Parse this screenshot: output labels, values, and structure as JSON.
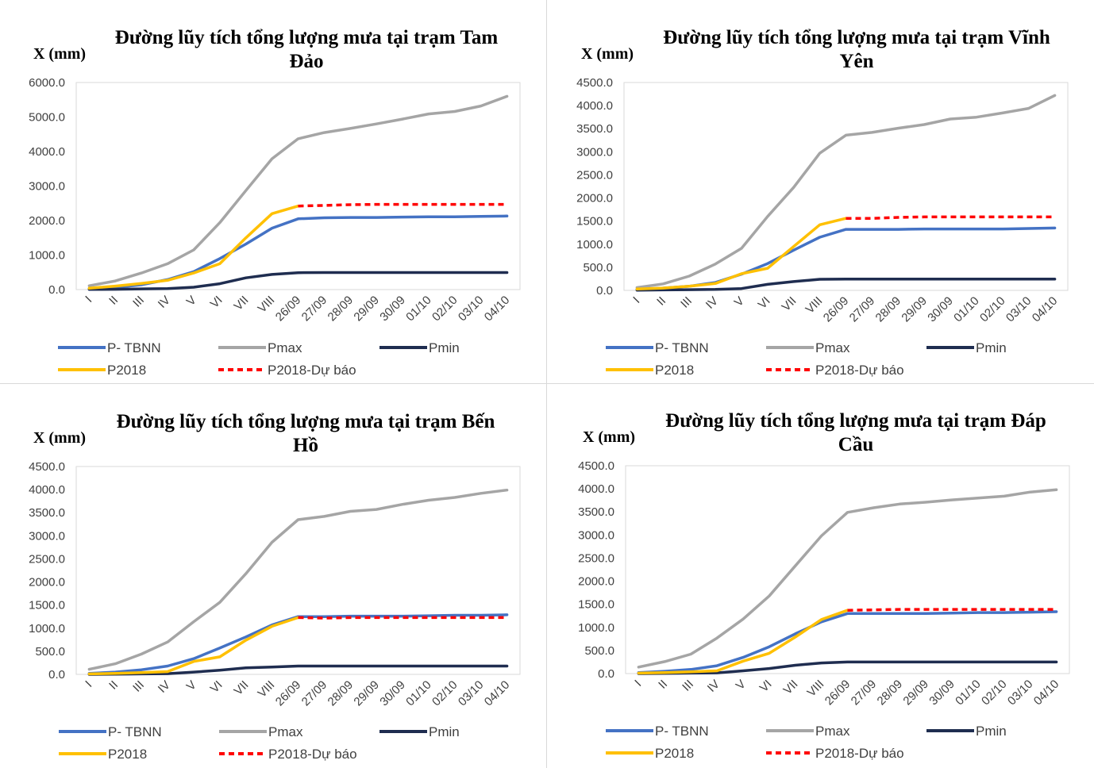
{
  "chart_data": [
    {
      "type": "line",
      "title_lines": [
        "Đường lũy tích tổng lượng mưa tại trạm Tam",
        "Đảo"
      ],
      "ylabel": "X (mm)",
      "xlabel": "",
      "ylim": [
        0,
        6000
      ],
      "ytick_step": 1000,
      "categories": [
        "I",
        "II",
        "III",
        "IV",
        "V",
        "VI",
        "VII",
        "VIII",
        "26/09",
        "27/09",
        "28/09",
        "29/09",
        "30/09",
        "01/10",
        "02/10",
        "03/10",
        "04/10"
      ],
      "series": [
        {
          "name": "P- TBNN",
          "color": "#4472c4",
          "dashed": false,
          "values": [
            20,
            60,
            140,
            290,
            520,
            900,
            1320,
            1780,
            2050,
            2080,
            2090,
            2090,
            2100,
            2110,
            2110,
            2120,
            2130
          ]
        },
        {
          "name": "Pmax",
          "color": "#a5a5a5",
          "dashed": false,
          "values": [
            110,
            250,
            480,
            750,
            1150,
            1940,
            2870,
            3790,
            4370,
            4550,
            4670,
            4800,
            4940,
            5090,
            5160,
            5320,
            5600
          ]
        },
        {
          "name": "Pmin",
          "color": "#1f2d50",
          "dashed": false,
          "values": [
            5,
            10,
            20,
            30,
            70,
            170,
            340,
            440,
            490,
            495,
            495,
            495,
            495,
            495,
            495,
            495,
            495
          ]
        },
        {
          "name": "P2018",
          "color": "#ffc000",
          "dashed": false,
          "values": [
            40,
            100,
            180,
            270,
            480,
            750,
            1500,
            2200,
            2420,
            null,
            null,
            null,
            null,
            null,
            null,
            null,
            null
          ]
        },
        {
          "name": "P2018-Dự báo",
          "color": "#ff0000",
          "dashed": true,
          "values": [
            null,
            null,
            null,
            null,
            null,
            null,
            null,
            null,
            2420,
            2440,
            2460,
            2470,
            2470,
            2470,
            2470,
            2470,
            2470
          ]
        }
      ]
    },
    {
      "type": "line",
      "title_lines": [
        "Đường lũy tích tổng lượng mưa tại trạm Vĩnh",
        "Yên"
      ],
      "ylabel": "X (mm)",
      "xlabel": "",
      "ylim": [
        0,
        4500
      ],
      "ytick_step": 500,
      "categories": [
        "I",
        "II",
        "III",
        "IV",
        "V",
        "VI",
        "VII",
        "VIII",
        "26/09",
        "27/09",
        "28/09",
        "29/09",
        "30/09",
        "01/10",
        "02/10",
        "03/10",
        "04/10"
      ],
      "series": [
        {
          "name": "P- TBNN",
          "color": "#4472c4",
          "dashed": false,
          "values": [
            20,
            50,
            90,
            170,
            350,
            580,
            870,
            1150,
            1320,
            1320,
            1320,
            1330,
            1330,
            1330,
            1330,
            1340,
            1350
          ]
        },
        {
          "name": "Pmax",
          "color": "#a5a5a5",
          "dashed": false,
          "values": [
            60,
            140,
            310,
            570,
            910,
            1600,
            2230,
            2970,
            3360,
            3420,
            3510,
            3590,
            3710,
            3750,
            3840,
            3940,
            4220
          ]
        },
        {
          "name": "Pmin",
          "color": "#1f2d50",
          "dashed": false,
          "values": [
            5,
            10,
            15,
            20,
            40,
            130,
            190,
            240,
            245,
            245,
            245,
            245,
            245,
            245,
            245,
            245,
            245
          ]
        },
        {
          "name": "P2018",
          "color": "#ffc000",
          "dashed": false,
          "values": [
            30,
            50,
            90,
            150,
            360,
            480,
            950,
            1420,
            1560,
            null,
            null,
            null,
            null,
            null,
            null,
            null,
            null
          ]
        },
        {
          "name": "P2018-Dự báo",
          "color": "#ff0000",
          "dashed": true,
          "values": [
            null,
            null,
            null,
            null,
            null,
            null,
            null,
            null,
            1560,
            1560,
            1580,
            1590,
            1590,
            1590,
            1590,
            1590,
            1590
          ]
        }
      ]
    },
    {
      "type": "line",
      "title_lines": [
        "Đường lũy tích tổng lượng mưa tại trạm Bến",
        "Hồ"
      ],
      "ylabel": "X (mm)",
      "xlabel": "",
      "ylim": [
        0,
        4500
      ],
      "ytick_step": 500,
      "categories": [
        "I",
        "II",
        "III",
        "IV",
        "V",
        "VI",
        "VII",
        "VIII",
        "26/09",
        "27/09",
        "28/09",
        "29/09",
        "30/09",
        "01/10",
        "02/10",
        "03/10",
        "04/10"
      ],
      "series": [
        {
          "name": "P- TBNN",
          "color": "#4472c4",
          "dashed": false,
          "values": [
            20,
            50,
            100,
            180,
            340,
            570,
            810,
            1070,
            1250,
            1250,
            1260,
            1260,
            1260,
            1270,
            1280,
            1280,
            1290
          ]
        },
        {
          "name": "Pmax",
          "color": "#a5a5a5",
          "dashed": false,
          "values": [
            110,
            230,
            440,
            700,
            1140,
            1560,
            2180,
            2860,
            3350,
            3420,
            3530,
            3570,
            3680,
            3770,
            3830,
            3920,
            3990
          ]
        },
        {
          "name": "Pmin",
          "color": "#1f2d50",
          "dashed": false,
          "values": [
            0,
            5,
            10,
            15,
            50,
            90,
            140,
            160,
            180,
            180,
            180,
            180,
            180,
            180,
            180,
            180,
            180
          ]
        },
        {
          "name": "P2018",
          "color": "#ffc000",
          "dashed": false,
          "values": [
            10,
            20,
            40,
            60,
            280,
            380,
            740,
            1040,
            1230,
            null,
            null,
            null,
            null,
            null,
            null,
            null,
            null
          ]
        },
        {
          "name": "P2018-Dự báo",
          "color": "#ff0000",
          "dashed": true,
          "values": [
            null,
            null,
            null,
            null,
            null,
            null,
            null,
            null,
            1230,
            1220,
            1230,
            1230,
            1230,
            1230,
            1230,
            1230,
            1230
          ]
        }
      ]
    },
    {
      "type": "line",
      "title_lines": [
        "Đường lũy tích tổng lượng mưa tại trạm Đáp",
        "Cầu"
      ],
      "ylabel": "X (mm)",
      "xlabel": "",
      "ylim": [
        0,
        4500
      ],
      "ytick_step": 500,
      "categories": [
        "I",
        "II",
        "III",
        "IV",
        "V",
        "VI",
        "VII",
        "VIII",
        "26/09",
        "27/09",
        "28/09",
        "29/09",
        "30/09",
        "01/10",
        "02/10",
        "03/10",
        "04/10"
      ],
      "series": [
        {
          "name": "P- TBNN",
          "color": "#4472c4",
          "dashed": false,
          "values": [
            20,
            50,
            90,
            170,
            350,
            580,
            860,
            1120,
            1300,
            1300,
            1300,
            1300,
            1310,
            1320,
            1320,
            1330,
            1340
          ]
        },
        {
          "name": "Pmax",
          "color": "#a5a5a5",
          "dashed": false,
          "values": [
            140,
            260,
            420,
            770,
            1180,
            1680,
            2330,
            2980,
            3490,
            3590,
            3670,
            3710,
            3760,
            3800,
            3840,
            3930,
            3980
          ]
        },
        {
          "name": "Pmin",
          "color": "#1f2d50",
          "dashed": false,
          "values": [
            0,
            5,
            10,
            15,
            60,
            110,
            180,
            230,
            250,
            250,
            250,
            250,
            250,
            250,
            250,
            250,
            250
          ]
        },
        {
          "name": "P2018",
          "color": "#ffc000",
          "dashed": false,
          "values": [
            10,
            20,
            40,
            60,
            270,
            440,
            790,
            1170,
            1370,
            null,
            null,
            null,
            null,
            null,
            null,
            null,
            null
          ]
        },
        {
          "name": "P2018-Dự báo",
          "color": "#ff0000",
          "dashed": true,
          "values": [
            null,
            null,
            null,
            null,
            null,
            null,
            null,
            null,
            1370,
            1380,
            1390,
            1390,
            1390,
            1390,
            1390,
            1390,
            1390
          ]
        }
      ]
    }
  ]
}
